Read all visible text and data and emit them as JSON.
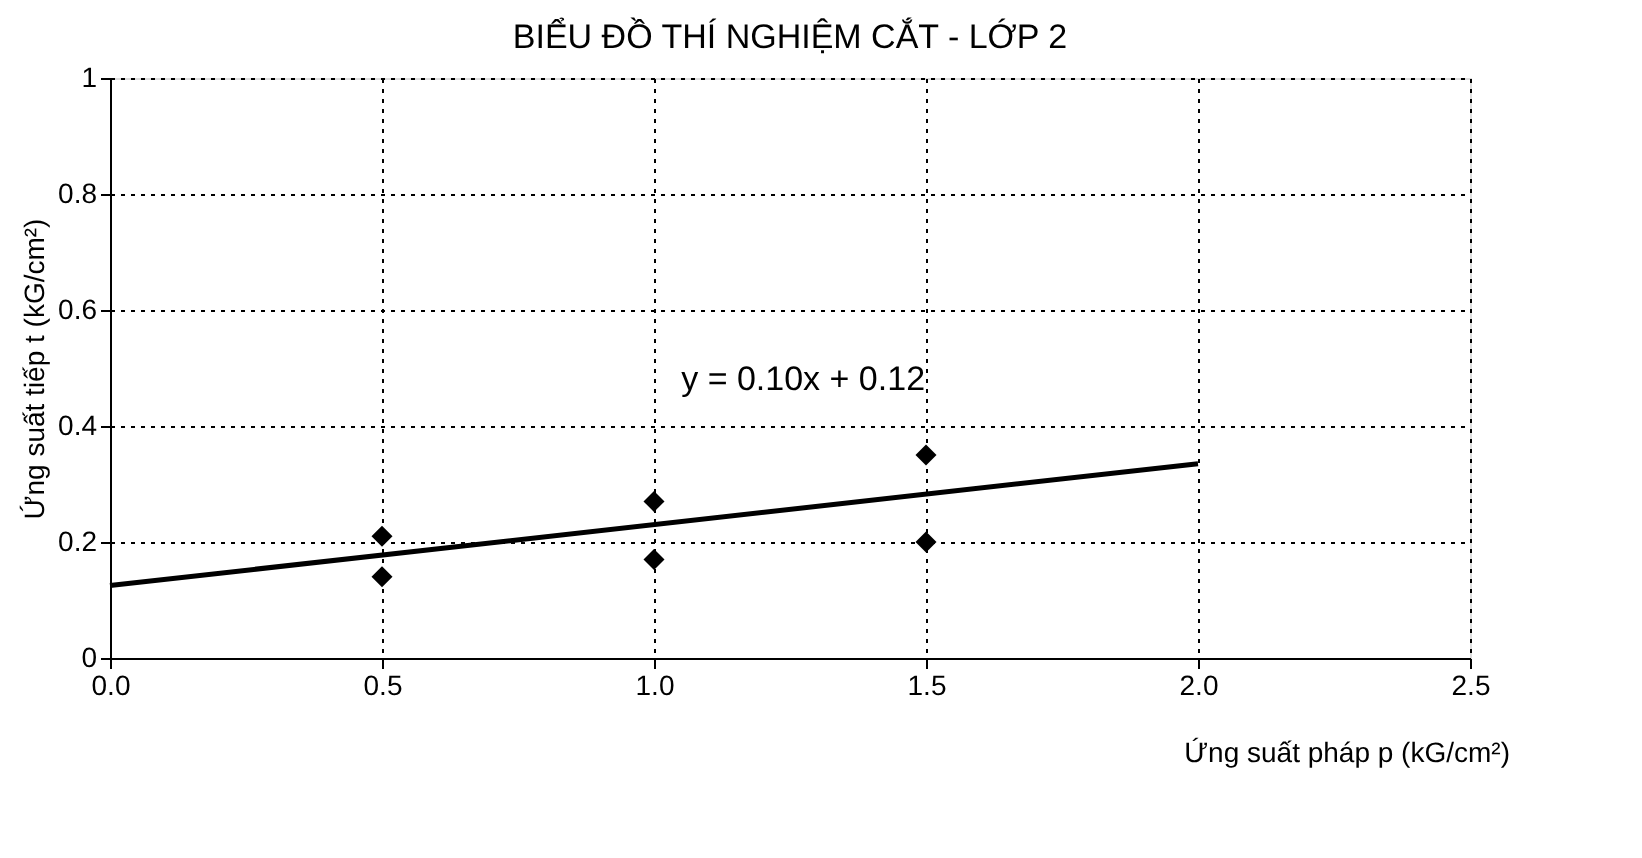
{
  "chart_data": {
    "type": "scatter",
    "title": "BIỂU ĐỒ THÍ NGHIỆM CẮT - LỚP 2",
    "xlabel": "Ứng suất pháp p (kG/cm²)",
    "ylabel": "Ứng suất tiếp t (kG/cm²)",
    "series": [
      {
        "marker": "diamond",
        "x": [
          0.5,
          0.5,
          1.0,
          1.0,
          1.5,
          1.5
        ],
        "values": [
          0.21,
          0.14,
          0.27,
          0.17,
          0.35,
          0.2
        ],
        "color": "#000000"
      },
      {
        "type": "line",
        "marker": "none",
        "x": [
          0,
          2.0
        ],
        "values": [
          0.125,
          0.335
        ],
        "color": "#000000"
      }
    ],
    "annotations": [
      "y = 0.10x + 0.12"
    ],
    "xlim": [
      0,
      2.5
    ],
    "xticks": [
      {
        "value": 0,
        "label": "0.0"
      },
      {
        "value": 0.5,
        "label": "0.5"
      },
      {
        "value": 1,
        "label": "1.0"
      },
      {
        "value": 1.5,
        "label": "1.5"
      },
      {
        "value": 2,
        "label": "2.0"
      },
      {
        "value": 2.5,
        "label": "2.5"
      }
    ],
    "ylim": [
      0,
      1
    ],
    "yticks": [
      0,
      0.2,
      0.4,
      0.6,
      0.8,
      1
    ],
    "grid": true
  }
}
